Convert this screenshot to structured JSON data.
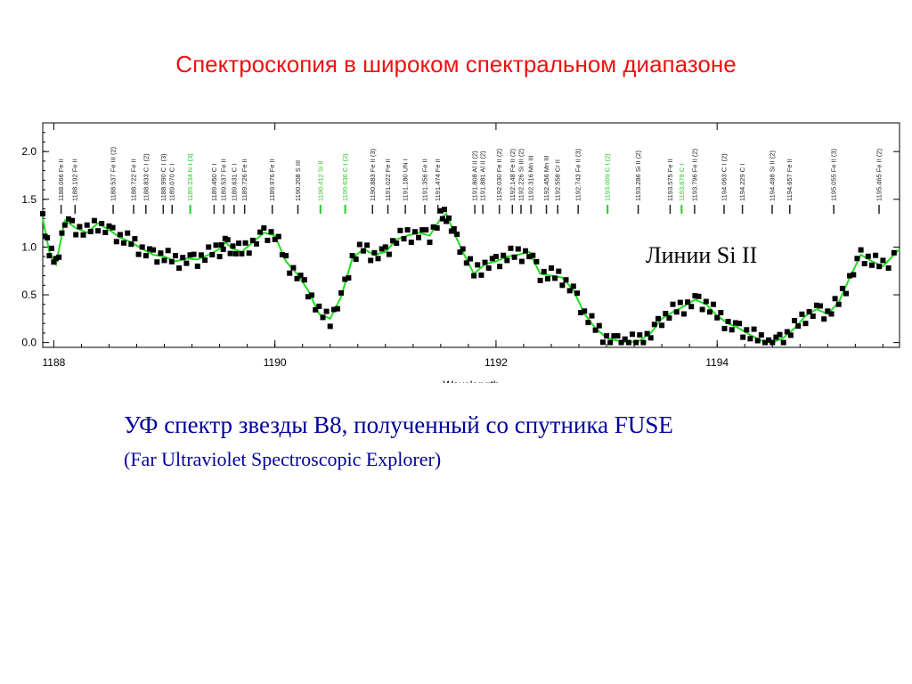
{
  "slide": {
    "title": "Спектроскопия в широком спектральном диапазоне",
    "annotation": "Линии Si II",
    "caption_main": "УФ спектр звезды B8, полученный со спутника FUSE",
    "caption_sub": "(Far Ultraviolet Spectroscopic Explorer)"
  },
  "colors": {
    "title": "#ee1111",
    "caption": "#000099",
    "fit_line": "#22dd22",
    "points": "#000000",
    "highlight_label": "#22cc22"
  },
  "chart_data": {
    "type": "scatter",
    "xlabel": "Wavelength",
    "ylabel": "",
    "xlim": [
      1187.9,
      1195.65
    ],
    "ylim": [
      -0.05,
      2.3
    ],
    "x_ticks": [
      1188,
      1190,
      1192,
      1194
    ],
    "y_ticks": [
      0.0,
      0.5,
      1.0,
      1.5,
      2.0
    ],
    "y_tick_labels": [
      "0.0",
      "0.5",
      "1.0",
      "1.5",
      "2.0"
    ],
    "series": [
      {
        "name": "",
        "kind": "line",
        "x": [
          1187.9,
          1187.96,
          1188.02,
          1188.1,
          1188.2,
          1188.3,
          1188.4,
          1188.5,
          1188.6,
          1188.7,
          1188.8,
          1188.9,
          1189.0,
          1189.1,
          1189.2,
          1189.3,
          1189.4,
          1189.5,
          1189.55,
          1189.62,
          1189.7,
          1189.8,
          1189.9,
          1190.0,
          1190.1,
          1190.2,
          1190.3,
          1190.4,
          1190.5,
          1190.6,
          1190.7,
          1190.8,
          1190.9,
          1191.0,
          1191.1,
          1191.2,
          1191.3,
          1191.4,
          1191.5,
          1191.55,
          1191.62,
          1191.7,
          1191.8,
          1191.9,
          1192.0,
          1192.1,
          1192.2,
          1192.3,
          1192.4,
          1192.5,
          1192.6,
          1192.7,
          1192.8,
          1192.9,
          1193.0,
          1193.1,
          1193.2,
          1193.3,
          1193.4,
          1193.5,
          1193.6,
          1193.7,
          1193.8,
          1193.9,
          1194.0,
          1194.1,
          1194.2,
          1194.3,
          1194.4,
          1194.5,
          1194.6,
          1194.7,
          1194.8,
          1194.9,
          1195.0,
          1195.1,
          1195.2,
          1195.3,
          1195.4,
          1195.5,
          1195.65
        ],
        "y": [
          1.3,
          0.95,
          0.82,
          1.28,
          1.2,
          1.15,
          1.25,
          1.18,
          1.1,
          1.05,
          0.98,
          0.92,
          0.9,
          0.85,
          0.88,
          0.87,
          0.92,
          0.98,
          1.05,
          0.98,
          0.95,
          1.05,
          1.15,
          1.12,
          0.85,
          0.72,
          0.55,
          0.3,
          0.25,
          0.48,
          0.88,
          0.98,
          0.92,
          0.95,
          1.08,
          1.12,
          1.15,
          1.12,
          1.3,
          1.35,
          1.15,
          0.95,
          0.72,
          0.82,
          0.85,
          0.9,
          0.92,
          0.95,
          0.72,
          0.7,
          0.68,
          0.55,
          0.3,
          0.15,
          0.05,
          0.02,
          0.0,
          0.02,
          0.1,
          0.25,
          0.32,
          0.38,
          0.45,
          0.4,
          0.28,
          0.2,
          0.15,
          0.08,
          0.02,
          0.0,
          0.05,
          0.15,
          0.28,
          0.35,
          0.3,
          0.42,
          0.68,
          0.92,
          0.85,
          0.8,
          0.98
        ]
      }
    ],
    "line_labels": [
      {
        "x": 1188.066,
        "text": "1188.066 Fe II",
        "highlight": false
      },
      {
        "x": 1188.192,
        "text": "1188.192 Fe II",
        "highlight": false
      },
      {
        "x": 1188.537,
        "text": "1188.537 Fe III (2)",
        "highlight": false
      },
      {
        "x": 1188.722,
        "text": "1188.722 Fe II",
        "highlight": false
      },
      {
        "x": 1188.833,
        "text": "1188.833 C I (2)",
        "highlight": false
      },
      {
        "x": 1188.99,
        "text": "1188.990 C I (3)",
        "highlight": false
      },
      {
        "x": 1189.07,
        "text": "1189.070 C I",
        "highlight": false
      },
      {
        "x": 1189.234,
        "text": "1189.234 N I (3)",
        "highlight": true
      },
      {
        "x": 1189.45,
        "text": "1189.450 C I",
        "highlight": false
      },
      {
        "x": 1189.537,
        "text": "1189.537 Fe II",
        "highlight": false
      },
      {
        "x": 1189.631,
        "text": "1189.631 C I",
        "highlight": false
      },
      {
        "x": 1189.726,
        "text": "1189.726 Fe II",
        "highlight": false
      },
      {
        "x": 1189.976,
        "text": "1189.976 Fe II",
        "highlight": false
      },
      {
        "x": 1190.208,
        "text": "1190.208 S III",
        "highlight": false
      },
      {
        "x": 1190.412,
        "text": "1190.412 Si II",
        "highlight": true
      },
      {
        "x": 1190.636,
        "text": "1190.636 C I (2)",
        "highlight": true
      },
      {
        "x": 1190.883,
        "text": "1190.883 Fe II (3)",
        "highlight": false
      },
      {
        "x": 1191.022,
        "text": "1191.022 Fe II",
        "highlight": false
      },
      {
        "x": 1191.18,
        "text": "1191.180 UN I",
        "highlight": false
      },
      {
        "x": 1191.356,
        "text": "1191.356 Fe II",
        "highlight": false
      },
      {
        "x": 1191.474,
        "text": "1191.474 Fe II",
        "highlight": false
      },
      {
        "x": 1191.808,
        "text": "1191.808 Al II (2)",
        "highlight": false
      },
      {
        "x": 1191.881,
        "text": "1191.881 Al II (2)",
        "highlight": false
      },
      {
        "x": 1192.03,
        "text": "1192.030 Fe II (2)",
        "highlight": false
      },
      {
        "x": 1192.148,
        "text": "1192.148 Fe II (2)",
        "highlight": false
      },
      {
        "x": 1192.226,
        "text": "1192.226 Si III (2)",
        "highlight": false
      },
      {
        "x": 1192.316,
        "text": "1192.316 Mn III",
        "highlight": false
      },
      {
        "x": 1192.456,
        "text": "1192.456 Mn III",
        "highlight": false
      },
      {
        "x": 1192.558,
        "text": "1192.558 Cr II",
        "highlight": false
      },
      {
        "x": 1192.743,
        "text": "1192.743 Fe II (3)",
        "highlight": false
      },
      {
        "x": 1193.009,
        "text": "1193.009 C I (2)",
        "highlight": true
      },
      {
        "x": 1193.286,
        "text": "1193.286 Si II (2)",
        "highlight": false
      },
      {
        "x": 1193.575,
        "text": "1193.575 Fe II",
        "highlight": false
      },
      {
        "x": 1193.679,
        "text": "1193.679 C I",
        "highlight": true
      },
      {
        "x": 1193.796,
        "text": "1193.796 Fe II (2)",
        "highlight": false
      },
      {
        "x": 1194.063,
        "text": "1194.063 C I (2)",
        "highlight": false
      },
      {
        "x": 1194.229,
        "text": "1194.229 C I",
        "highlight": false
      },
      {
        "x": 1194.498,
        "text": "1194.498 Si II (2)",
        "highlight": false
      },
      {
        "x": 1194.657,
        "text": "1194.657 Fe II",
        "highlight": false
      },
      {
        "x": 1195.055,
        "text": "1195.055 Fe II (3)",
        "highlight": false
      },
      {
        "x": 1195.465,
        "text": "1195.465 Fe II (2)",
        "highlight": false
      }
    ],
    "grid": false,
    "legend": "none"
  }
}
